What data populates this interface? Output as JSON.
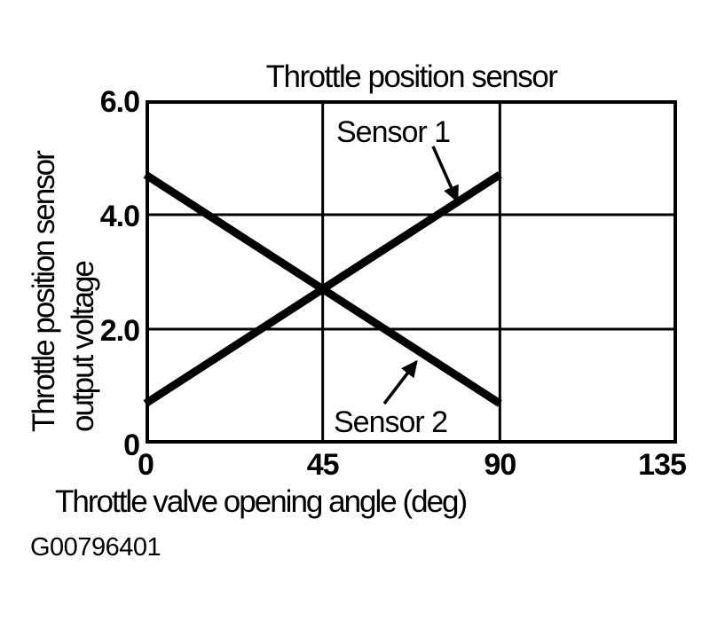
{
  "figure_code": "G00796401",
  "chart_data": {
    "type": "line",
    "title": "Throttle position sensor",
    "xlabel": "Throttle valve opening angle (deg)",
    "ylabel": "Throttle position sensor output voltage",
    "ylabel_lines": [
      "Throttle position sensor",
      "output voltage"
    ],
    "xlim": [
      0,
      135
    ],
    "ylim": [
      0,
      6.0
    ],
    "xticks": [
      {
        "value": 0,
        "label": "0"
      },
      {
        "value": 45,
        "label": "45"
      },
      {
        "value": 90,
        "label": "90"
      },
      {
        "value": 135,
        "label": "135"
      }
    ],
    "yticks": [
      {
        "value": 0,
        "label": "0"
      },
      {
        "value": 2.0,
        "label": "2.0"
      },
      {
        "value": 4.0,
        "label": "4.0"
      },
      {
        "value": 6.0,
        "label": "6.0"
      }
    ],
    "grid": true,
    "legend_position": "none",
    "background": "#ffffff",
    "axes_color": "#000000",
    "line_color": "#000000",
    "series": [
      {
        "name": "Sensor 1",
        "x": [
          0,
          90
        ],
        "y": [
          0.7,
          4.7
        ]
      },
      {
        "name": "Sensor 2",
        "x": [
          0,
          90
        ],
        "y": [
          4.7,
          0.7
        ]
      }
    ],
    "annotations": [
      {
        "text": "Sensor 1"
      },
      {
        "text": "Sensor 2"
      }
    ]
  }
}
